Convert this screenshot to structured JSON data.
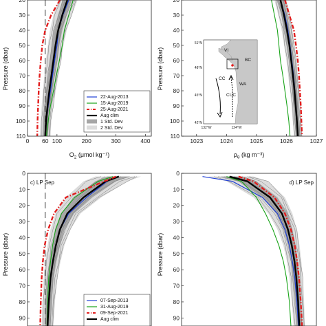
{
  "figure": {
    "panels": [
      {
        "id": "a",
        "xlabel_main": "O",
        "xlabel_sub": "2",
        "xlabel_rest": " (μmol kg⁻¹)",
        "ylabel": "Pressure (dbar)",
        "y_ticks": [
          "20",
          "30",
          "40",
          "50",
          "60",
          "70",
          "80",
          "90",
          "100",
          "110"
        ],
        "x_ticks": [
          "0",
          "60",
          "100",
          "200",
          "300",
          "400"
        ],
        "legend": [
          {
            "label": "22-Aug-2013",
            "kind": "blue"
          },
          {
            "label": "15-Aug-2019",
            "kind": "green"
          },
          {
            "label": "25-Aug-2021",
            "kind": "red"
          },
          {
            "label": "Aug clim",
            "kind": "black"
          },
          {
            "label": "1 Std. Dev",
            "kind": "dark-patch"
          },
          {
            "label": "2 Std. Dev",
            "kind": "light-patch"
          }
        ]
      },
      {
        "id": "b",
        "xlabel_main": "ρ",
        "xlabel_sub": "θ",
        "xlabel_rest": " (kg m⁻³)",
        "ylabel": "Pressure (dbar)",
        "y_ticks": [
          "20",
          "30",
          "40",
          "50",
          "60",
          "70",
          "80",
          "90",
          "100",
          "110"
        ],
        "x_ticks": [
          "1023",
          "1024",
          "1025",
          "1026",
          "1027"
        ],
        "map": {
          "lat_labels": [
            "51°N",
            "48°N",
            "45°N",
            "42°N"
          ],
          "lon_labels": [
            "132°W",
            "124°W"
          ],
          "region_labels": [
            "VI",
            "BC",
            "WA",
            "CC",
            "CUC"
          ]
        }
      },
      {
        "id": "c",
        "panel_label": "c) LP Sep",
        "ylabel": "Pressure (dbar)",
        "y_ticks": [
          "0",
          "10",
          "20",
          "30",
          "40",
          "50",
          "60",
          "70",
          "80",
          "90"
        ],
        "legend": [
          {
            "label": "07-Sep-2013",
            "kind": "blue"
          },
          {
            "label": "31-Aug-2019",
            "kind": "green"
          },
          {
            "label": "09-Sep-2021",
            "kind": "red"
          },
          {
            "label": "Aug clim",
            "kind": "black"
          }
        ]
      },
      {
        "id": "d",
        "panel_label": "d) LP Sep",
        "ylabel": "Pressure (dbar)",
        "y_ticks": [
          "0",
          "10",
          "20",
          "30",
          "40",
          "50",
          "60",
          "70",
          "80",
          "90"
        ]
      }
    ]
  },
  "colors": {
    "blue": "#1f3fd6",
    "green": "#18a318",
    "red": "#e21d1d",
    "black": "#000000",
    "std1": "#a6a6a6",
    "std2": "#dcdcdc",
    "thin": "#7a7a7a"
  },
  "chart_data": [
    {
      "type": "line",
      "panel": "a",
      "xlabel": "O2 (μmol kg-1)",
      "ylabel": "Pressure (dbar)",
      "xlim": [
        0,
        420
      ],
      "ylim": [
        20,
        110
      ],
      "y_reversed": true,
      "reference_line_x": 60,
      "series": [
        {
          "name": "22-Aug-2013",
          "x": [
            140,
            120,
            105,
            100,
            92,
            85,
            78,
            70,
            64,
            60
          ],
          "y": [
            20,
            30,
            40,
            50,
            60,
            70,
            80,
            90,
            100,
            110
          ]
        },
        {
          "name": "15-Aug-2019",
          "x": [
            155,
            140,
            125,
            118,
            108,
            98,
            88,
            78,
            70,
            64
          ],
          "y": [
            20,
            30,
            40,
            50,
            60,
            70,
            80,
            90,
            100,
            110
          ]
        },
        {
          "name": "25-Aug-2021",
          "x": [
            110,
            80,
            60,
            50,
            45,
            41,
            38,
            36,
            34,
            33
          ],
          "y": [
            20,
            30,
            40,
            50,
            60,
            70,
            80,
            90,
            100,
            110
          ]
        },
        {
          "name": "Aug clim",
          "x": [
            135,
            118,
            104,
            95,
            88,
            81,
            74,
            68,
            63,
            60
          ],
          "y": [
            20,
            30,
            40,
            50,
            60,
            70,
            80,
            90,
            100,
            110
          ]
        }
      ],
      "std1": {
        "lo": [
          120,
          103,
          90,
          82,
          75,
          69,
          63,
          58,
          54,
          51
        ],
        "hi": [
          150,
          133,
          118,
          108,
          101,
          93,
          85,
          78,
          72,
          69
        ]
      },
      "std2": {
        "lo": [
          105,
          88,
          76,
          69,
          62,
          57,
          52,
          48,
          45,
          42
        ],
        "hi": [
          170,
          150,
          133,
          122,
          114,
          105,
          96,
          88,
          81,
          78
        ]
      }
    },
    {
      "type": "line",
      "panel": "b",
      "xlabel": "ρθ (kg m-3)",
      "ylabel": "Pressure (dbar)",
      "xlim": [
        1022.5,
        1027
      ],
      "ylim": [
        20,
        110
      ],
      "y_reversed": true,
      "series": [
        {
          "name": "22-Aug-2013",
          "x": [
            1025.8,
            1025.95,
            1026.05,
            1026.12,
            1026.18,
            1026.24,
            1026.28,
            1026.32,
            1026.35,
            1026.38
          ],
          "y": [
            20,
            30,
            40,
            50,
            60,
            70,
            80,
            90,
            100,
            110
          ]
        },
        {
          "name": "15-Aug-2019",
          "x": [
            1025.5,
            1025.6,
            1025.7,
            1025.75,
            1025.8,
            1025.88,
            1025.95,
            1026.02,
            1026.08,
            1026.12
          ],
          "y": [
            20,
            30,
            40,
            50,
            60,
            70,
            80,
            90,
            100,
            110
          ]
        },
        {
          "name": "25-Aug-2021",
          "x": [
            1025.95,
            1026.1,
            1026.25,
            1026.32,
            1026.38,
            1026.42,
            1026.45,
            1026.48,
            1026.5,
            1026.52
          ],
          "y": [
            20,
            30,
            40,
            50,
            60,
            70,
            80,
            90,
            100,
            110
          ]
        },
        {
          "name": "Aug clim",
          "x": [
            1025.8,
            1025.92,
            1026.02,
            1026.1,
            1026.16,
            1026.22,
            1026.27,
            1026.31,
            1026.35,
            1026.38
          ],
          "y": [
            20,
            30,
            40,
            50,
            60,
            70,
            80,
            90,
            100,
            110
          ]
        }
      ],
      "std1": {
        "lo": [
          1025.7,
          1025.83,
          1025.93,
          1026.01,
          1026.08,
          1026.14,
          1026.19,
          1026.24,
          1026.28,
          1026.31
        ],
        "hi": [
          1025.92,
          1026.03,
          1026.12,
          1026.19,
          1026.25,
          1026.31,
          1026.36,
          1026.4,
          1026.43,
          1026.46
        ]
      },
      "std2": {
        "lo": [
          1025.6,
          1025.73,
          1025.84,
          1025.92,
          1026.0,
          1026.06,
          1026.12,
          1026.17,
          1026.21,
          1026.25
        ],
        "hi": [
          1026.0,
          1026.12,
          1026.2,
          1026.28,
          1026.33,
          1026.38,
          1026.43,
          1026.47,
          1026.5,
          1026.53
        ]
      }
    },
    {
      "type": "line",
      "panel": "c",
      "ylabel": "Pressure (dbar)",
      "xlim": [
        0,
        420
      ],
      "ylim": [
        0,
        95
      ],
      "y_reversed": true,
      "reference_line_x": 60,
      "series": [
        {
          "name": "07-Sep-2013",
          "x": [
            300,
            270,
            200,
            140,
            110,
            95,
            85,
            78,
            72,
            68
          ],
          "y": [
            2,
            5,
            15,
            25,
            35,
            45,
            55,
            65,
            80,
            95
          ]
        },
        {
          "name": "31-Aug-2019",
          "x": [
            290,
            240,
            160,
            115,
            95,
            85,
            78,
            72,
            68,
            66
          ],
          "y": [
            2,
            5,
            15,
            25,
            35,
            45,
            55,
            65,
            80,
            95
          ]
        },
        {
          "name": "09-Sep-2021",
          "x": [
            300,
            260,
            130,
            90,
            70,
            58,
            52,
            48,
            45,
            43
          ],
          "y": [
            2,
            5,
            15,
            25,
            35,
            45,
            55,
            65,
            80,
            95
          ]
        },
        {
          "name": "Aug clim",
          "x": [
            310,
            265,
            190,
            135,
            110,
            96,
            86,
            78,
            72,
            68
          ],
          "y": [
            2,
            5,
            15,
            25,
            35,
            45,
            55,
            65,
            80,
            95
          ]
        }
      ],
      "std1": {
        "lo": [
          270,
          230,
          160,
          115,
          95,
          83,
          74,
          67,
          62,
          58
        ],
        "hi": [
          345,
          300,
          220,
          158,
          126,
          110,
          98,
          89,
          82,
          78
        ]
      },
      "std2": {
        "lo": [
          230,
          190,
          130,
          95,
          78,
          68,
          60,
          55,
          51,
          48
        ],
        "hi": [
          385,
          340,
          250,
          180,
          145,
          125,
          112,
          101,
          93,
          88
        ]
      }
    },
    {
      "type": "line",
      "panel": "d",
      "ylabel": "Pressure (dbar)",
      "xlim": [
        1022.5,
        1027
      ],
      "ylim": [
        0,
        95
      ],
      "y_reversed": true,
      "series": [
        {
          "name": "07-Sep-2013",
          "x": [
            1023.2,
            1024.2,
            1025.2,
            1025.7,
            1025.95,
            1026.1,
            1026.2,
            1026.28,
            1026.35,
            1026.4
          ],
          "y": [
            2,
            5,
            15,
            25,
            35,
            45,
            55,
            65,
            80,
            95
          ]
        },
        {
          "name": "31-Aug-2019",
          "x": [
            1024.0,
            1024.5,
            1025.0,
            1025.3,
            1025.55,
            1025.75,
            1025.9,
            1026.0,
            1026.1,
            1026.15
          ],
          "y": [
            2,
            5,
            15,
            25,
            35,
            45,
            55,
            65,
            80,
            95
          ]
        },
        {
          "name": "09-Sep-2021",
          "x": [
            1024.4,
            1024.9,
            1025.6,
            1025.95,
            1026.15,
            1026.28,
            1026.36,
            1026.42,
            1026.48,
            1026.52
          ],
          "y": [
            2,
            5,
            15,
            25,
            35,
            45,
            55,
            65,
            80,
            95
          ]
        },
        {
          "name": "Aug clim",
          "x": [
            1024.1,
            1024.7,
            1025.45,
            1025.85,
            1026.05,
            1026.18,
            1026.27,
            1026.33,
            1026.39,
            1026.43
          ],
          "y": [
            2,
            5,
            15,
            25,
            35,
            45,
            55,
            65,
            80,
            95
          ]
        }
      ],
      "std1": {
        "lo": [
          1023.8,
          1024.4,
          1025.2,
          1025.65,
          1025.9,
          1026.05,
          1026.15,
          1026.22,
          1026.29,
          1026.34
        ],
        "hi": [
          1024.5,
          1025.0,
          1025.7,
          1026.05,
          1026.2,
          1026.31,
          1026.38,
          1026.44,
          1026.49,
          1026.52
        ]
      },
      "std2": {
        "lo": [
          1023.4,
          1024.0,
          1024.9,
          1025.4,
          1025.7,
          1025.9,
          1026.02,
          1026.1,
          1026.18,
          1026.24
        ],
        "hi": [
          1024.9,
          1025.4,
          1025.95,
          1026.2,
          1026.35,
          1026.44,
          1026.5,
          1026.55,
          1026.59,
          1026.62
        ]
      }
    }
  ]
}
